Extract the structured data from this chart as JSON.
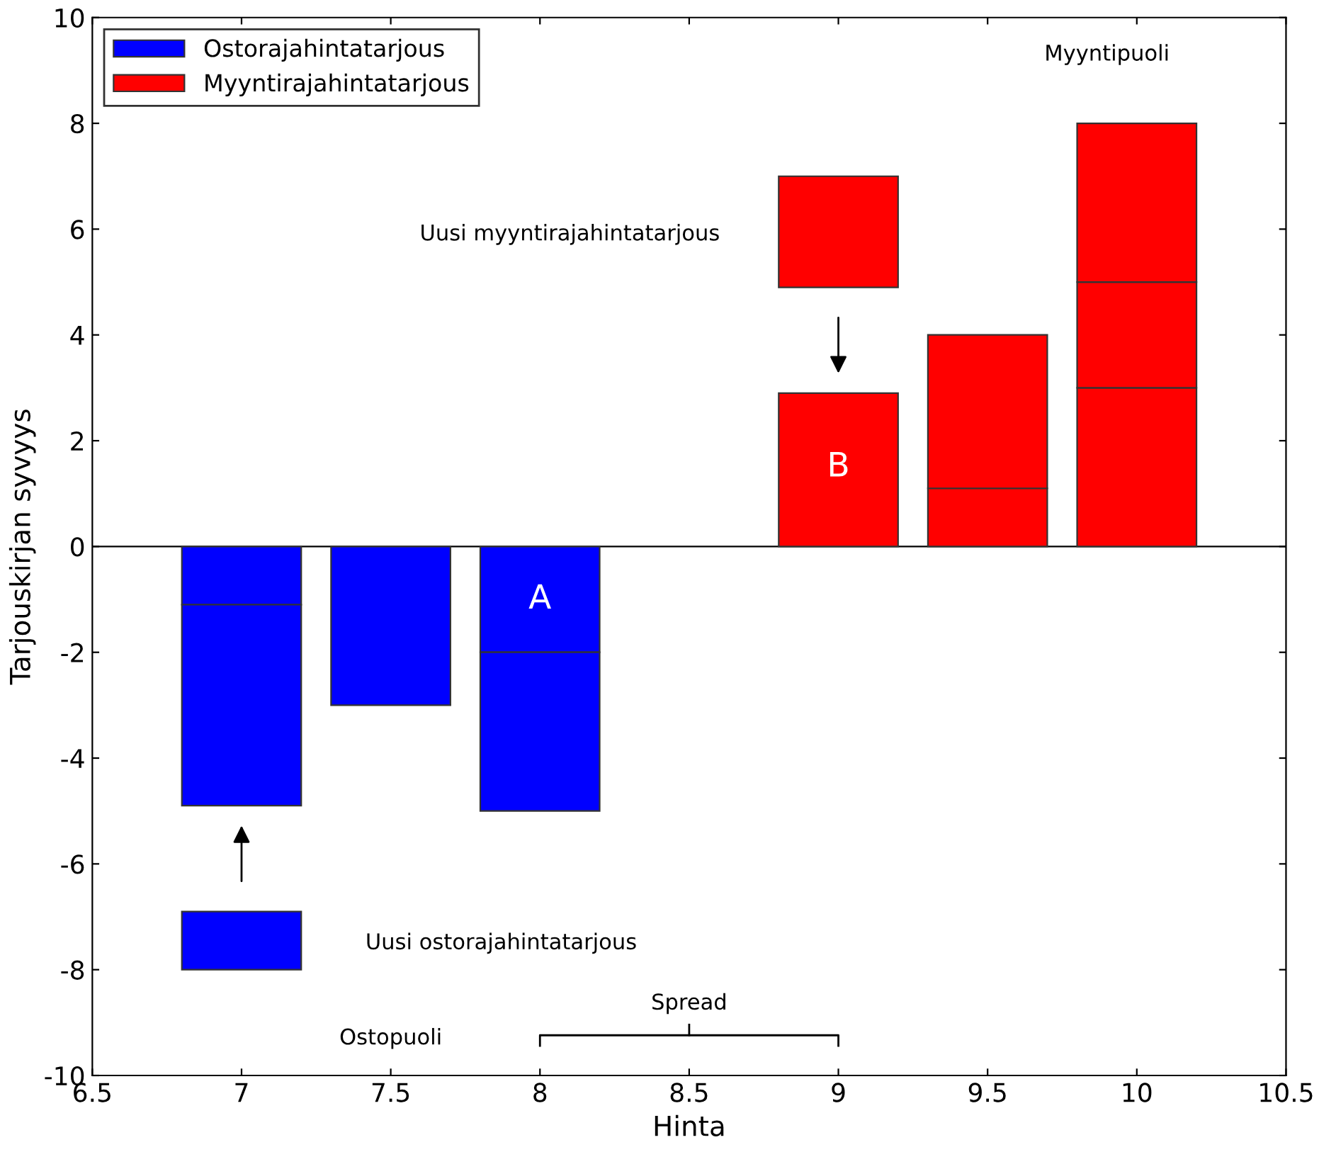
{
  "chart_data": {
    "type": "bar",
    "xlabel": "Hinta",
    "ylabel": "Tarjouskirjan syvyys",
    "series": [
      {
        "name": "Ostorajahintatarjous",
        "color": "#0000ff",
        "x": [
          7,
          7.5,
          8
        ],
        "base": [
          0,
          0,
          0
        ],
        "values": [
          -1.1,
          -3,
          -2
        ]
      },
      {
        "color": "#0000ff",
        "x": [
          7,
          8
        ],
        "base": [
          -1.1,
          -2
        ],
        "values": [
          -3.8,
          -3
        ]
      },
      {
        "color": "#0000ff",
        "x": [
          7
        ],
        "base": [
          -8
        ],
        "values": [
          1.1
        ]
      },
      {
        "name": "Myyntirajahintatarjous",
        "color": "#ff0000",
        "x": [
          9,
          9.5,
          10
        ],
        "base": [
          0,
          0,
          0
        ],
        "values": [
          2.9,
          1.1,
          3
        ]
      },
      {
        "color": "#ff0000",
        "x": [
          9,
          9.5,
          10
        ],
        "base": [
          4.9,
          1.1,
          3
        ],
        "values": [
          2.1,
          2.9,
          2
        ]
      },
      {
        "color": "#ff0000",
        "x": [
          10
        ],
        "base": [
          5
        ],
        "values": [
          3
        ]
      }
    ],
    "xlim": [
      6.5,
      10.5
    ],
    "xticks": [
      6.5,
      7,
      7.5,
      8,
      8.5,
      9,
      9.5,
      10,
      10.5
    ],
    "ylim": [
      -10,
      10
    ],
    "yticks": [
      -10,
      -8,
      -6,
      -4,
      -2,
      0,
      2,
      4,
      6,
      8,
      10
    ],
    "ref_lines": [
      {
        "axis": "y",
        "value": 0,
        "color": "#000000"
      }
    ],
    "legend": "top left",
    "grid": false,
    "annotations": [
      "Myyntipuoli",
      "Uusi myyntirajahintatarjous",
      "B",
      "A",
      "Uusi ostorajahintatarjous",
      "Spread",
      "Ostopuoli"
    ]
  }
}
